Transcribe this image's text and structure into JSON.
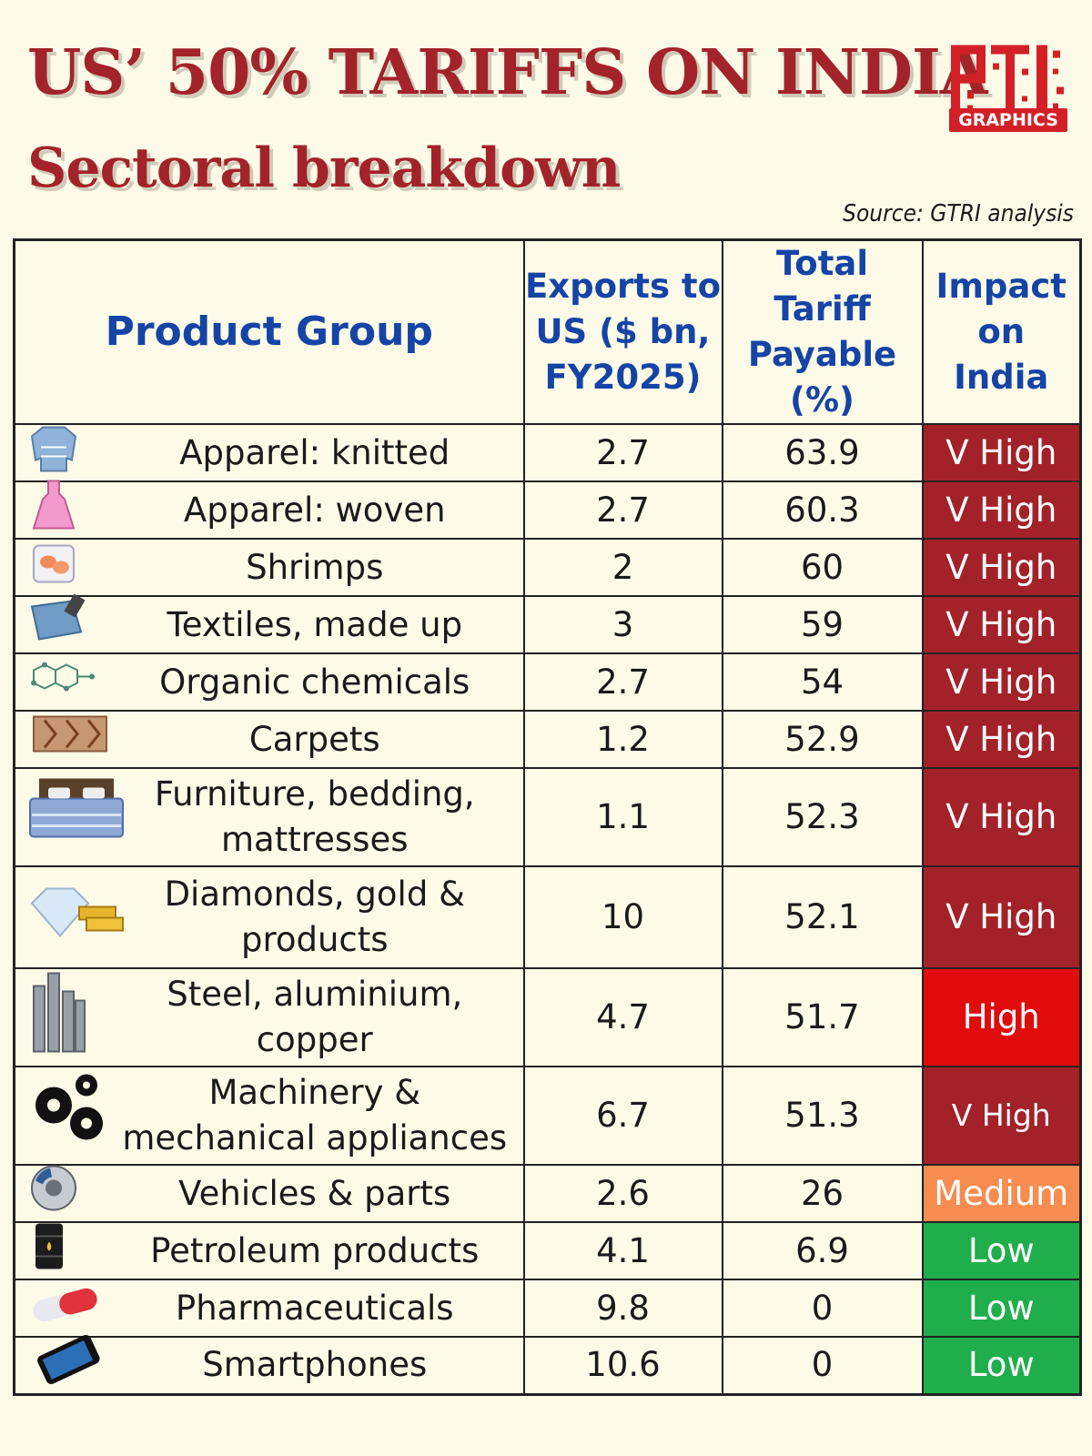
{
  "header": {
    "title": "US’ 50% TARIFFS ON INDIA",
    "subtitle": "Sectoral breakdown",
    "logo_badge": "GRAPHICS",
    "source": "Source: GTRI analysis"
  },
  "table": {
    "columns": {
      "product": "Product Group",
      "exports_line1": "Exports to",
      "exports_line2": "US ($ bn,",
      "exports_line3": "FY2025)",
      "tariff_line1": "Total Tariff",
      "tariff_line2": "Payable",
      "tariff_line3": "(%)",
      "impact_line1": "Impact",
      "impact_line2": "on",
      "impact_line3": "India"
    },
    "rows": [
      {
        "line1": "Apparel: knitted",
        "line2": "",
        "exports": "2.7",
        "tariff": "63.9",
        "impact": "V High",
        "level": "vhigh",
        "icon": "sweater-icon"
      },
      {
        "line1": "Apparel: woven",
        "line2": "",
        "exports": "2.7",
        "tariff": "60.3",
        "impact": "V High",
        "level": "vhigh",
        "icon": "dress-icon"
      },
      {
        "line1": "Shrimps",
        "line2": "",
        "exports": "2",
        "tariff": "60",
        "impact": "V High",
        "level": "vhigh",
        "icon": "shrimp-icon"
      },
      {
        "line1": "Textiles, made up",
        "line2": "",
        "exports": "3",
        "tariff": "59",
        "impact": "V High",
        "level": "vhigh",
        "icon": "textile-icon"
      },
      {
        "line1": "Organic chemicals",
        "line2": "",
        "exports": "2.7",
        "tariff": "54",
        "impact": "V High",
        "level": "vhigh",
        "icon": "molecule-icon"
      },
      {
        "line1": "Carpets",
        "line2": "",
        "exports": "1.2",
        "tariff": "52.9",
        "impact": "V High",
        "level": "vhigh",
        "icon": "carpet-icon"
      },
      {
        "line1": "Furniture, bedding,",
        "line2": "mattresses",
        "exports": "1.1",
        "tariff": "52.3",
        "impact": "V High",
        "level": "vhigh",
        "icon": "bed-icon"
      },
      {
        "line1": "Diamonds, gold &",
        "line2": "products",
        "exports": "10",
        "tariff": "52.1",
        "impact": "V High",
        "level": "vhigh",
        "icon": "diamond-gold-icon"
      },
      {
        "line1": "Steel, aluminium,",
        "line2": "copper",
        "exports": "4.7",
        "tariff": "51.7",
        "impact": "High",
        "level": "high",
        "icon": "steel-bars-icon"
      },
      {
        "line1": "Machinery &",
        "line2": "mechanical appliances",
        "exports": "6.7",
        "tariff": "51.3",
        "impact": "V High",
        "level": "vhigh",
        "icon": "gears-icon"
      },
      {
        "line1": "Vehicles & parts",
        "line2": "",
        "exports": "2.6",
        "tariff": "26",
        "impact": "Medium",
        "level": "medium",
        "icon": "brake-disc-icon"
      },
      {
        "line1": "Petroleum products",
        "line2": "",
        "exports": "4.1",
        "tariff": "6.9",
        "impact": "Low",
        "level": "low",
        "icon": "oil-barrel-icon"
      },
      {
        "line1": "Pharmaceuticals",
        "line2": "",
        "exports": "9.8",
        "tariff": "0",
        "impact": "Low",
        "level": "low",
        "icon": "pill-capsule-icon"
      },
      {
        "line1": "Smartphones",
        "line2": "",
        "exports": "10.6",
        "tariff": "0",
        "impact": "Low",
        "level": "low",
        "icon": "smartphone-icon"
      }
    ]
  },
  "colors": {
    "title": "#a3232a",
    "header_text": "#1544a6",
    "v_high": "#a3222a",
    "high": "#e00b0b",
    "medium": "#f68c50",
    "low": "#1fae4b",
    "background": "#fdfbe8"
  }
}
